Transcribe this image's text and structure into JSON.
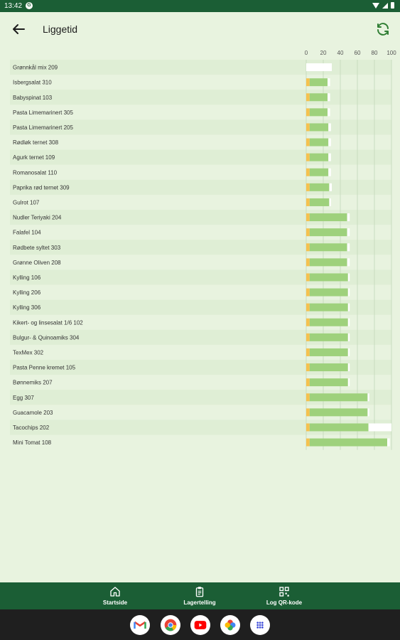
{
  "status_bar": {
    "time": "13:42",
    "notification_glyph": "G"
  },
  "app_bar": {
    "title": "Liggetid",
    "back_icon": "arrow-back-icon",
    "refresh_icon": "refresh-icon"
  },
  "chart_data": {
    "type": "bar",
    "orientation": "horizontal",
    "stacked": true,
    "xlim": [
      0,
      100
    ],
    "x_ticks": [
      "0",
      "20",
      "40",
      "60",
      "80",
      "100"
    ],
    "grid": true,
    "categories": [
      "Grønnkål mix 209",
      "Isbergsalat 310",
      "Babyspinat 103",
      "Pasta Limemarinert 305",
      "Pasta Limemarinert 205",
      "Rødløk ternet 308",
      "Agurk ternet 109",
      "Romanosalat 110",
      "Paprika rød ternet 309",
      "Gulrot 107",
      "Nudler Teriyaki 204",
      "Falafel 104",
      "Rødbete syltet 303",
      "Grønne Oliven 208",
      "Kylling 106",
      "Kylling 206",
      "Kylling 306",
      "Kikert- og linsesalat 1/6 102",
      "Bulgur- & Quinoamiks 304",
      "TexMex 302",
      "Pasta Penne kremet 105",
      "Bønnemiks 207",
      "Egg 307",
      "Guacamole 203",
      "Tacochips 202",
      "Mini Tomat 108"
    ],
    "series": [
      {
        "color": "#f5c14f",
        "values": [
          0,
          4,
          4,
          4,
          4,
          4,
          4,
          4,
          4,
          4,
          4,
          4,
          4,
          4,
          4,
          4,
          4,
          4,
          4,
          4,
          4,
          4,
          4,
          4,
          4,
          4
        ]
      },
      {
        "color": "#9ed17c",
        "values": [
          0,
          21,
          21,
          21,
          22,
          22,
          22,
          22,
          23,
          23,
          44,
          44,
          44,
          44,
          45,
          45,
          45,
          45,
          45,
          45,
          45,
          45,
          68,
          68,
          69,
          91
        ]
      },
      {
        "color": "#ffffff",
        "values": [
          30,
          3,
          3,
          3,
          3,
          3,
          3,
          3,
          3,
          2,
          3,
          3,
          3,
          3,
          2,
          2,
          2,
          2,
          2,
          2,
          2,
          2,
          2,
          2,
          27,
          3
        ]
      }
    ]
  },
  "bottom_nav": [
    {
      "label": "Startside",
      "icon": "home-icon"
    },
    {
      "label": "Lagertelling",
      "icon": "clipboard-icon"
    },
    {
      "label": "Log QR-kode",
      "icon": "qr-code-icon"
    }
  ],
  "system_dock": [
    {
      "name": "gmail",
      "icon": "gmail-icon",
      "color": "#ea4335"
    },
    {
      "name": "chrome",
      "icon": "chrome-icon",
      "color": "#4285f4"
    },
    {
      "name": "youtube",
      "icon": "youtube-icon",
      "color": "#ff0000"
    },
    {
      "name": "photos",
      "icon": "photos-icon",
      "color": "#fbbc05"
    },
    {
      "name": "apps",
      "icon": "app-drawer-icon",
      "color": "#3c4ad8"
    }
  ]
}
